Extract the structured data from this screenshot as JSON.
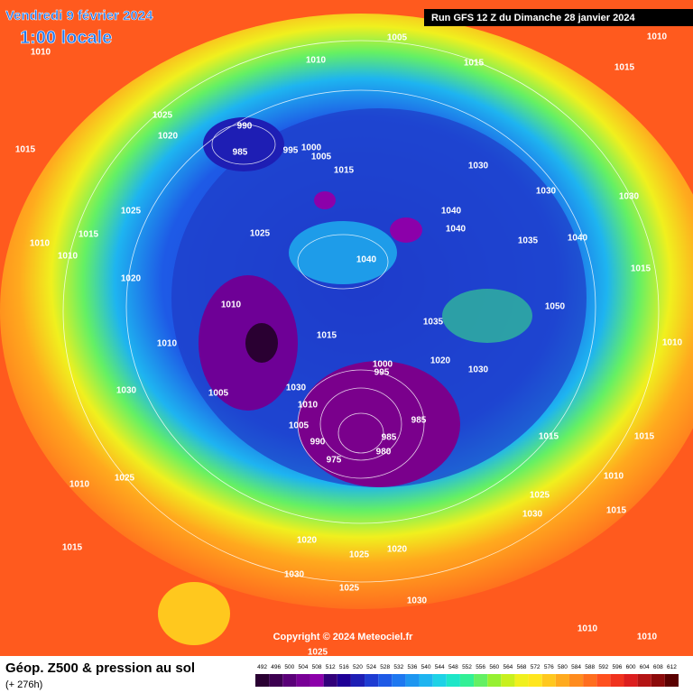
{
  "header": {
    "title": "Vendredi 9 février 2024",
    "time": "1:00 locale",
    "run": "Run GFS 12 Z du Dimanche 28 janvier 2024"
  },
  "footer": {
    "title": "Géop. Z500 & pression au sol",
    "lead": "(+ 276h)",
    "copyright": "Copyright © 2024 Meteociel.fr"
  },
  "legend": {
    "labels": [
      492,
      496,
      500,
      504,
      508,
      512,
      516,
      520,
      524,
      528,
      532,
      536,
      540,
      544,
      548,
      552,
      556,
      560,
      564,
      568,
      572,
      576,
      580,
      584,
      588,
      592,
      596,
      600,
      604,
      608,
      612
    ],
    "colors": [
      "#2a0032",
      "#3c0050",
      "#5a0078",
      "#780096",
      "#8c00aa",
      "#32007a",
      "#1e0096",
      "#1e1eb4",
      "#1e3cd2",
      "#1e5ae6",
      "#1e78f0",
      "#1e96f0",
      "#1eb4f0",
      "#1ed2e6",
      "#1ee6c8",
      "#32f096",
      "#64f064",
      "#96f032",
      "#c8f01e",
      "#f0f01e",
      "#ffe61e",
      "#ffc81e",
      "#ffaa1e",
      "#ff8c1e",
      "#ff6e1e",
      "#ff501e",
      "#f0321e",
      "#dc1e1e",
      "#b41414",
      "#8c0a0a",
      "#5a0000"
    ]
  },
  "map": {
    "pressure_labels": [
      1005,
      1010,
      1010,
      1015,
      1010,
      1015,
      1025,
      1020,
      990,
      985,
      995,
      1000,
      1005,
      1015,
      1015,
      1030,
      1030,
      1030,
      1025,
      1025,
      1040,
      1040,
      1035,
      1040,
      1040,
      1015,
      1010,
      1010,
      1020,
      1050,
      1015,
      1010,
      1015,
      1035,
      1010,
      1010,
      1020,
      1030,
      1000,
      995,
      1030,
      1005,
      1030,
      1010,
      1005,
      985,
      985,
      990,
      980,
      975,
      1015,
      1015,
      1010,
      1025,
      1010,
      1025,
      1030,
      1015,
      1015,
      1020,
      1025,
      1020,
      1030,
      1025,
      1030,
      1010,
      1010,
      1025
    ]
  }
}
